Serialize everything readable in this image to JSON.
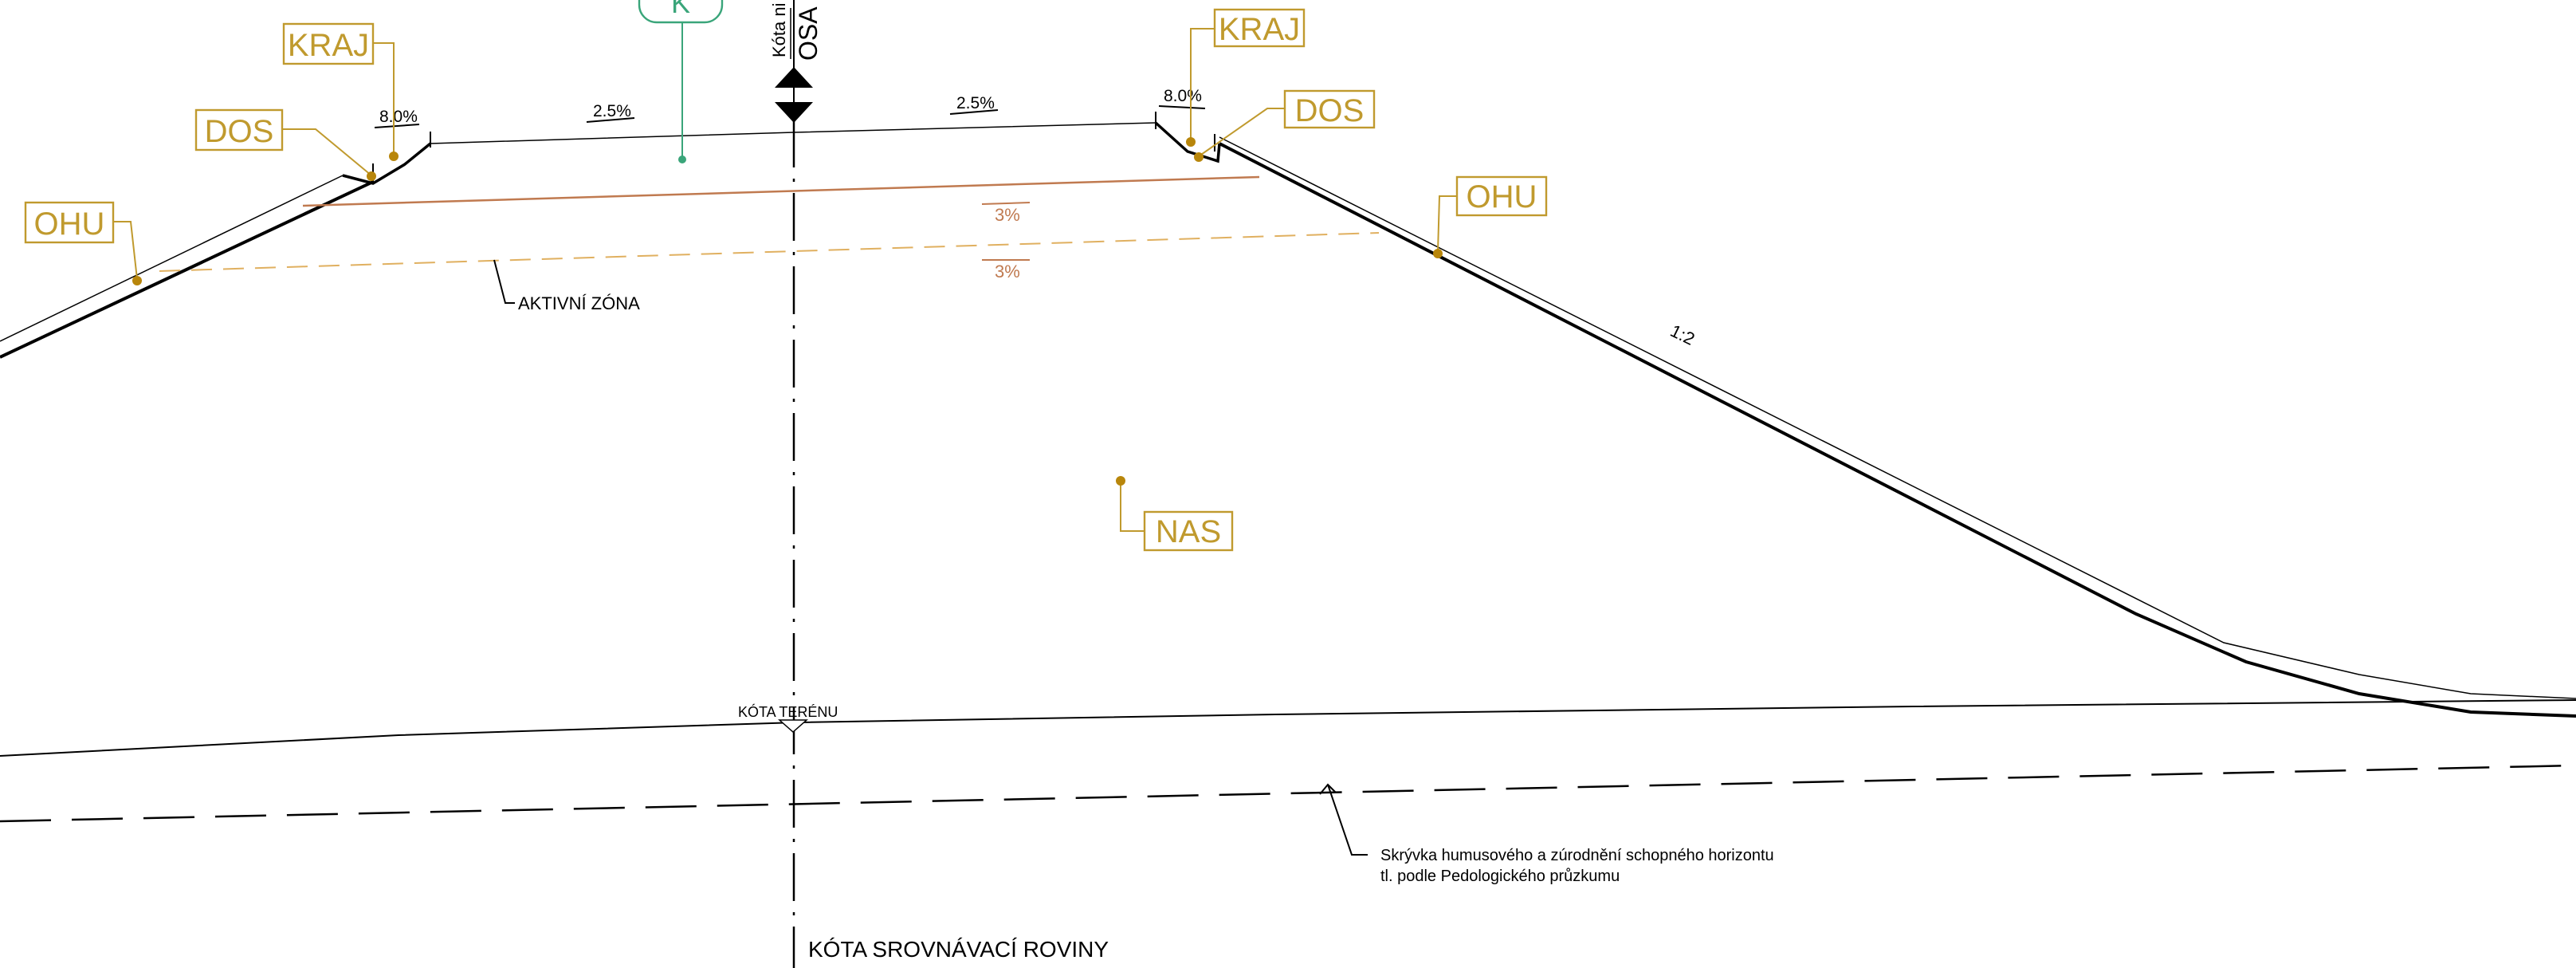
{
  "labels": {
    "kraj_left": "KRAJ",
    "kraj_right": "KRAJ",
    "dos_left": "DOS",
    "dos_right": "DOS",
    "ohu_left": "OHU",
    "ohu_right": "OHU",
    "nas": "NAS",
    "k_marker": "K"
  },
  "axis": {
    "kota_label": "Kóta ni",
    "osa": "OSA"
  },
  "slopes": {
    "left_edge": "8.0%",
    "right_edge": "8.0%",
    "left_carriageway": "2.5%",
    "right_carriageway": "2.5%",
    "layer_upper": "3%",
    "layer_lower": "3%",
    "embankment": "1:2"
  },
  "annotations": {
    "active_zone": "AKTIVNÍ ZÓNA",
    "terrain_level": "KÓTA TERÉNU",
    "topsoil_line1": "Skrývka humusového a zúrodnění schopného horizontu",
    "topsoil_line2": "tl.  podle Pedologického průzkumu",
    "leveling_plane": "KÓTA SROVNÁVACÍ ROVINY"
  },
  "colors": {
    "label": "#c09a2e",
    "marker_green": "#3aa57a",
    "layer_line": "#c07a50",
    "active_zone_line": "#e0b060"
  }
}
